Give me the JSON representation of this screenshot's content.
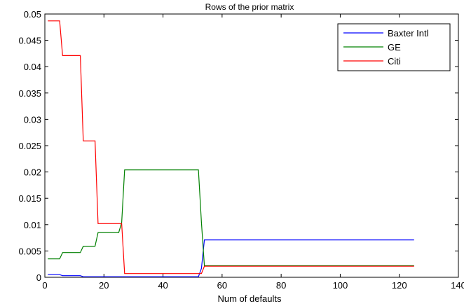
{
  "chart_data": {
    "type": "line",
    "title": "Rows of the prior matrix",
    "xlabel": "Num of defaults",
    "ylabel": "",
    "xlim": [
      0,
      140
    ],
    "ylim": [
      0,
      0.05
    ],
    "xticks": [
      0,
      20,
      40,
      60,
      80,
      100,
      120,
      140
    ],
    "yticks": [
      0,
      0.005,
      0.01,
      0.015,
      0.02,
      0.025,
      0.03,
      0.035,
      0.04,
      0.045,
      0.05
    ],
    "xtick_labels": [
      "0",
      "20",
      "40",
      "60",
      "80",
      "100",
      "120",
      "140"
    ],
    "ytick_labels": [
      "0",
      "0.005",
      "0.01",
      "0.015",
      "0.02",
      "0.025",
      "0.03",
      "0.035",
      "0.04",
      "0.045",
      "0.05"
    ],
    "grid": false,
    "legend_position": "top-right",
    "series": [
      {
        "name": "Baxter Intl",
        "color": "#0000ff",
        "points": [
          [
            1,
            0.0005
          ],
          [
            5,
            0.0005
          ],
          [
            6,
            0.0003
          ],
          [
            12,
            0.0003
          ],
          [
            13,
            0.0001
          ],
          [
            17,
            0.0001
          ],
          [
            18,
            0.0001
          ],
          [
            25,
            0.0001
          ],
          [
            26,
            0.0001
          ],
          [
            52,
            0.0001
          ],
          [
            53,
            0.0017
          ],
          [
            54,
            0.0071
          ],
          [
            125,
            0.0071
          ]
        ]
      },
      {
        "name": "GE",
        "color": "#008000",
        "points": [
          [
            1,
            0.0035
          ],
          [
            5,
            0.0035
          ],
          [
            6,
            0.0047
          ],
          [
            12,
            0.0047
          ],
          [
            13,
            0.0059
          ],
          [
            17,
            0.0059
          ],
          [
            18,
            0.0085
          ],
          [
            25,
            0.0085
          ],
          [
            26,
            0.0104
          ],
          [
            27,
            0.0204
          ],
          [
            52,
            0.0204
          ],
          [
            53,
            0.0104
          ],
          [
            54,
            0.0022
          ],
          [
            125,
            0.0022
          ]
        ]
      },
      {
        "name": "Citi",
        "color": "#ff0000",
        "points": [
          [
            1,
            0.0487
          ],
          [
            5,
            0.0487
          ],
          [
            6,
            0.0421
          ],
          [
            12,
            0.0421
          ],
          [
            13,
            0.0259
          ],
          [
            17,
            0.0259
          ],
          [
            18,
            0.0102
          ],
          [
            25,
            0.0102
          ],
          [
            26,
            0.0102
          ],
          [
            27,
            0.0007
          ],
          [
            52,
            0.0007
          ],
          [
            53,
            0.0007
          ],
          [
            54,
            0.0021
          ],
          [
            125,
            0.0021
          ]
        ]
      }
    ]
  }
}
